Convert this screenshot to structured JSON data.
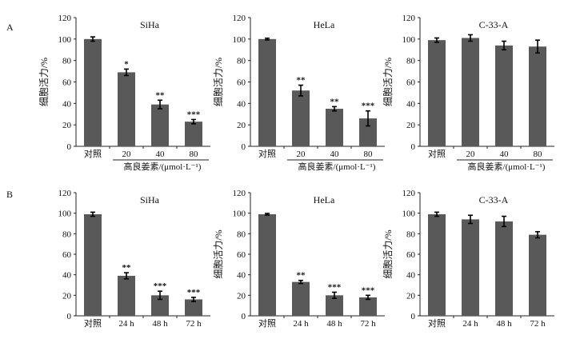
{
  "panel_labels": [
    "A",
    "B"
  ],
  "chart_data": [
    {
      "id": "A1",
      "row": 0,
      "col": 0,
      "type": "bar",
      "title": "SiHa",
      "ylabel": "细胞活力/%",
      "ylim": [
        0,
        120
      ],
      "yticks": [
        "0",
        "20",
        "40",
        "60",
        "80",
        "100",
        "120"
      ],
      "categories": [
        "对照",
        "20",
        "40",
        "80"
      ],
      "values": [
        100,
        69,
        39,
        23
      ],
      "errors": [
        2,
        3,
        4,
        2
      ],
      "significance": [
        "",
        "*",
        "**",
        "***"
      ],
      "xlabel": "高良姜素/(μmol·L⁻¹)",
      "bar_color": "#595959"
    },
    {
      "id": "A2",
      "row": 0,
      "col": 1,
      "type": "bar",
      "title": "HeLa",
      "ylabel": "细胞活力/%",
      "ylim": [
        0,
        120
      ],
      "yticks": [
        "0",
        "20",
        "40",
        "60",
        "80",
        "100",
        "120"
      ],
      "categories": [
        "对照",
        "20",
        "40",
        "80"
      ],
      "values": [
        100,
        52,
        35,
        26
      ],
      "errors": [
        0.8,
        5,
        2,
        7
      ],
      "significance": [
        "",
        "**",
        "**",
        "***"
      ],
      "xlabel": "高良姜素/(μmol·L⁻¹)",
      "bar_color": "#595959"
    },
    {
      "id": "A3",
      "row": 0,
      "col": 2,
      "type": "bar",
      "title": "C-33-A",
      "ylabel": "细胞活力/%",
      "ylim": [
        0,
        120
      ],
      "yticks": [
        "0",
        "20",
        "40",
        "60",
        "80",
        "100",
        "120"
      ],
      "categories": [
        "对照",
        "20",
        "40",
        "80"
      ],
      "values": [
        99,
        101,
        94,
        93
      ],
      "errors": [
        2,
        3,
        4,
        6
      ],
      "significance": [
        "",
        "",
        "",
        ""
      ],
      "xlabel": "高良姜素/(μmol·L⁻¹)",
      "bar_color": "#595959"
    },
    {
      "id": "B1",
      "row": 1,
      "col": 0,
      "type": "bar",
      "title": "SiHa",
      "ylabel": "",
      "ylim": [
        0,
        120
      ],
      "yticks": [
        "0",
        "20",
        "40",
        "60",
        "80",
        "100",
        "120"
      ],
      "categories": [
        "对照",
        "24 h",
        "48 h",
        "72 h"
      ],
      "values": [
        99,
        39,
        20,
        16
      ],
      "errors": [
        2,
        3,
        4,
        2
      ],
      "significance": [
        "",
        "**",
        "***",
        "***"
      ],
      "xlabel": "",
      "bar_color": "#595959"
    },
    {
      "id": "B2",
      "row": 1,
      "col": 1,
      "type": "bar",
      "title": "HeLa",
      "ylabel": "细胞活力/%",
      "ylim": [
        0,
        120
      ],
      "yticks": [
        "0",
        "20",
        "40",
        "60",
        "80",
        "100",
        "120"
      ],
      "categories": [
        "对照",
        "24 h",
        "48 h",
        "72 h"
      ],
      "values": [
        99,
        33,
        20,
        18
      ],
      "errors": [
        0.8,
        1.5,
        3,
        2
      ],
      "significance": [
        "",
        "**",
        "***",
        "***"
      ],
      "xlabel": "",
      "bar_color": "#595959"
    },
    {
      "id": "B3",
      "row": 1,
      "col": 2,
      "type": "bar",
      "title": "C-33-A",
      "ylabel": "细胞活力/%",
      "ylim": [
        0,
        120
      ],
      "yticks": [
        "0",
        "20",
        "40",
        "60",
        "80",
        "100",
        "120"
      ],
      "categories": [
        "对照",
        "24 h",
        "48 h",
        "72 h"
      ],
      "values": [
        99,
        94,
        92,
        79
      ],
      "errors": [
        2,
        4,
        5,
        3
      ],
      "significance": [
        "",
        "",
        "",
        ""
      ],
      "xlabel": "",
      "bar_color": "#595959"
    }
  ]
}
